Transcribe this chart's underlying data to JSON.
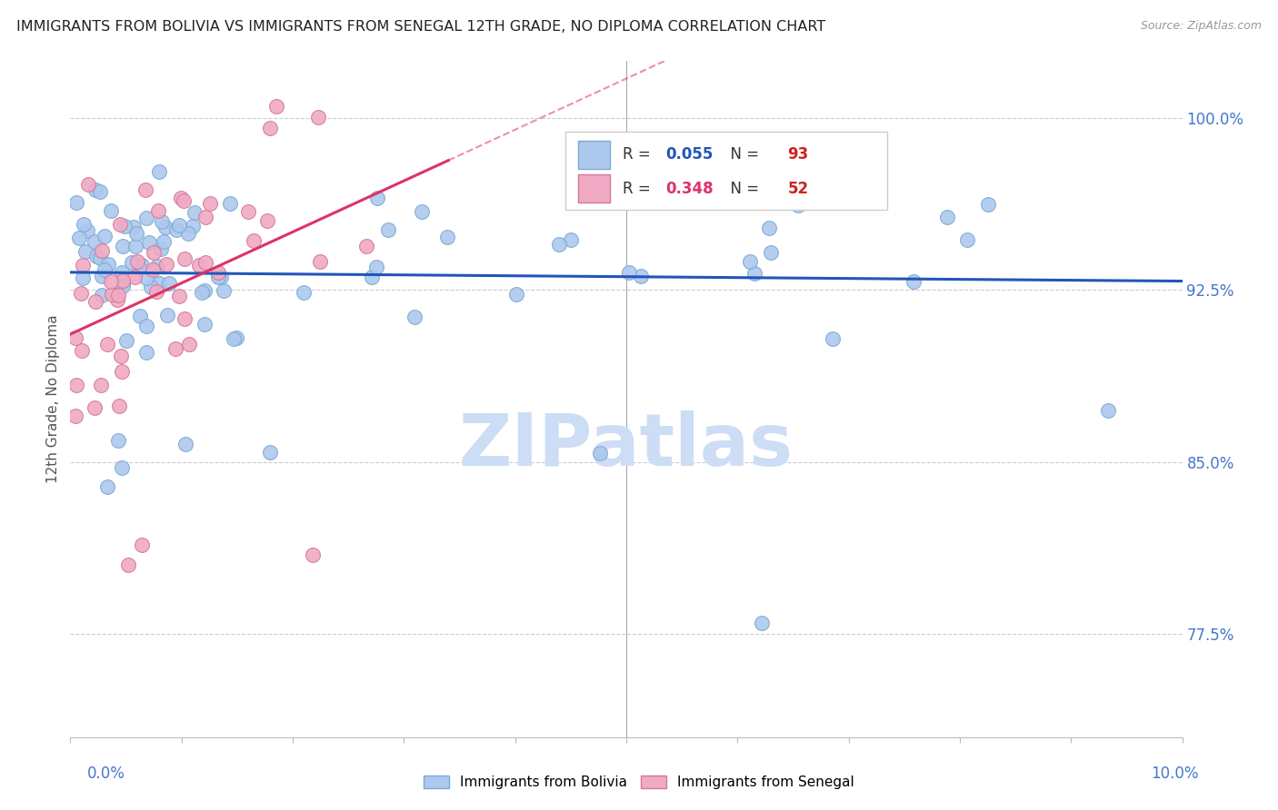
{
  "title": "IMMIGRANTS FROM BOLIVIA VS IMMIGRANTS FROM SENEGAL 12TH GRADE, NO DIPLOMA CORRELATION CHART",
  "source": "Source: ZipAtlas.com",
  "bolivia_color": "#adc8ed",
  "senegal_color": "#f0aac4",
  "bolivia_edge": "#7aaad4",
  "senegal_edge": "#d47899",
  "trend_bolivia_color": "#2255bb",
  "trend_senegal_color": "#dd3366",
  "R_bolivia": 0.055,
  "N_bolivia": 93,
  "R_senegal": 0.348,
  "N_senegal": 52,
  "watermark": "ZIPatlas",
  "watermark_color": "#ccddf5",
  "xlim": [
    0.0,
    10.0
  ],
  "ylim": [
    73.0,
    102.5
  ],
  "yticks": [
    100.0,
    92.5,
    85.0,
    77.5
  ],
  "ytick_labels": [
    "100.0%",
    "92.5%",
    "85.0%",
    "77.5%"
  ],
  "tick_color": "#4477cc"
}
